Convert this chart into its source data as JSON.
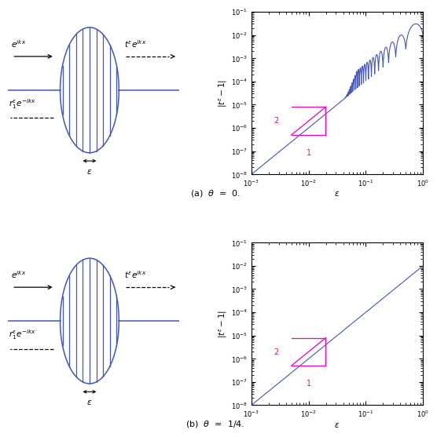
{
  "blue": "#4455bb",
  "magenta": "#ee00bb",
  "wave_xlim": [
    -2.0,
    2.2
  ],
  "wave_ylim": [
    -1.45,
    1.35
  ],
  "ellipse_a": 0.72,
  "ellipse_b": 1.08,
  "n_vlines": 9,
  "baseline_y": 0.0,
  "arrow_in_label": "$e^{ikx}$",
  "arrow_trans_label": "$t^\\varepsilon e^{ikx}$",
  "arrow_refl_label": "$r_1^\\varepsilon e^{-ikx}$",
  "eps_label": "$\\epsilon$",
  "xlabel": "$\\varepsilon$",
  "ylabel": "$|t^\\varepsilon - 1|$",
  "xlim": [
    0.001,
    1.0
  ],
  "ylim": [
    1e-08,
    0.1
  ],
  "slope_1_label": "1",
  "slope_2_label": "2",
  "caption_a": "(a)  $\\theta$  =  0.",
  "caption_b": "(b)  $\\theta$  =  1/4."
}
